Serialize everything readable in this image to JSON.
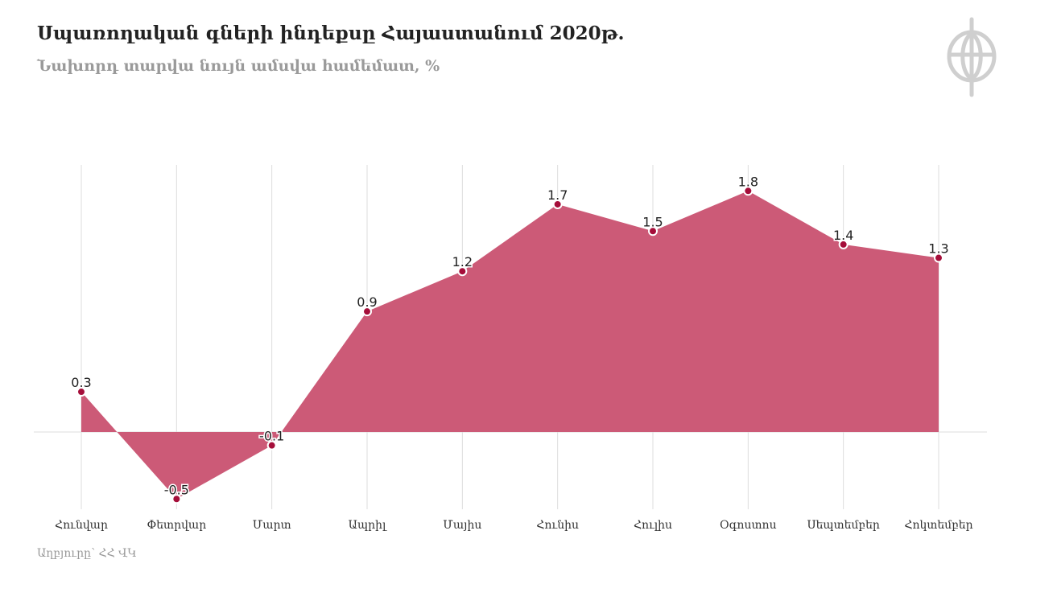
{
  "header": {
    "title": "Սպառողական գների ինդեքսը Հայաստանում  2020թ.",
    "subtitle": "Նախորդ տարվա նույն ամսվա համեմատ, %"
  },
  "footer": {
    "source": "Աղբյուրը՝ ՀՀ ՎԿ"
  },
  "colors": {
    "area": "#cc5a77",
    "marker": "#a50e3a",
    "grid": "#dddddd"
  },
  "logo_icon": "phi-logo-icon",
  "chart_data": {
    "type": "area",
    "categories": [
      "Հունվար",
      "Փետրվար",
      "Մարտ",
      "Ապրիլ",
      "Մայիս",
      "Հունիս",
      "Հուլիս",
      "Օգոստոս",
      "Սեպտեմբեր",
      "Հոկտեմբեր"
    ],
    "values": [
      0.3,
      -0.5,
      -0.1,
      0.9,
      1.2,
      1.7,
      1.5,
      1.8,
      1.4,
      1.3
    ],
    "data_labels": [
      "0.3",
      "-0.5",
      "-0.1",
      "0.9",
      "1.2",
      "1.7",
      "1.5",
      "1.8",
      "1.4",
      "1.3"
    ],
    "ylim": [
      -0.6,
      2.0
    ],
    "grid": "vertical",
    "legend": "none"
  }
}
